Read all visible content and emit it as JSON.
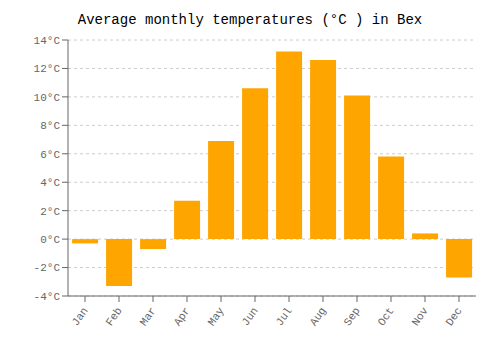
{
  "chart_data": {
    "type": "bar",
    "title": "Average monthly temperatures (°C ) in Bex",
    "categories": [
      "Jan",
      "Feb",
      "Mar",
      "Apr",
      "May",
      "Jun",
      "Jul",
      "Aug",
      "Sep",
      "Oct",
      "Nov",
      "Dec"
    ],
    "values": [
      -0.3,
      -3.3,
      -0.7,
      2.7,
      6.9,
      10.6,
      13.2,
      12.6,
      10.1,
      5.8,
      0.4,
      -2.7
    ],
    "color": "#FFA500",
    "ylim": [
      -4,
      14
    ],
    "yticks": [
      {
        "value": -4,
        "label": "-4°C"
      },
      {
        "value": -2,
        "label": "-2°C"
      },
      {
        "value": 0,
        "label": "0°C"
      },
      {
        "value": 2,
        "label": "2°C"
      },
      {
        "value": 4,
        "label": "4°C"
      },
      {
        "value": 6,
        "label": "6°C"
      },
      {
        "value": 8,
        "label": "8°C"
      },
      {
        "value": 10,
        "label": "10°C"
      },
      {
        "value": 12,
        "label": "12°C"
      },
      {
        "value": 14,
        "label": "14°C"
      }
    ],
    "grid": true
  }
}
